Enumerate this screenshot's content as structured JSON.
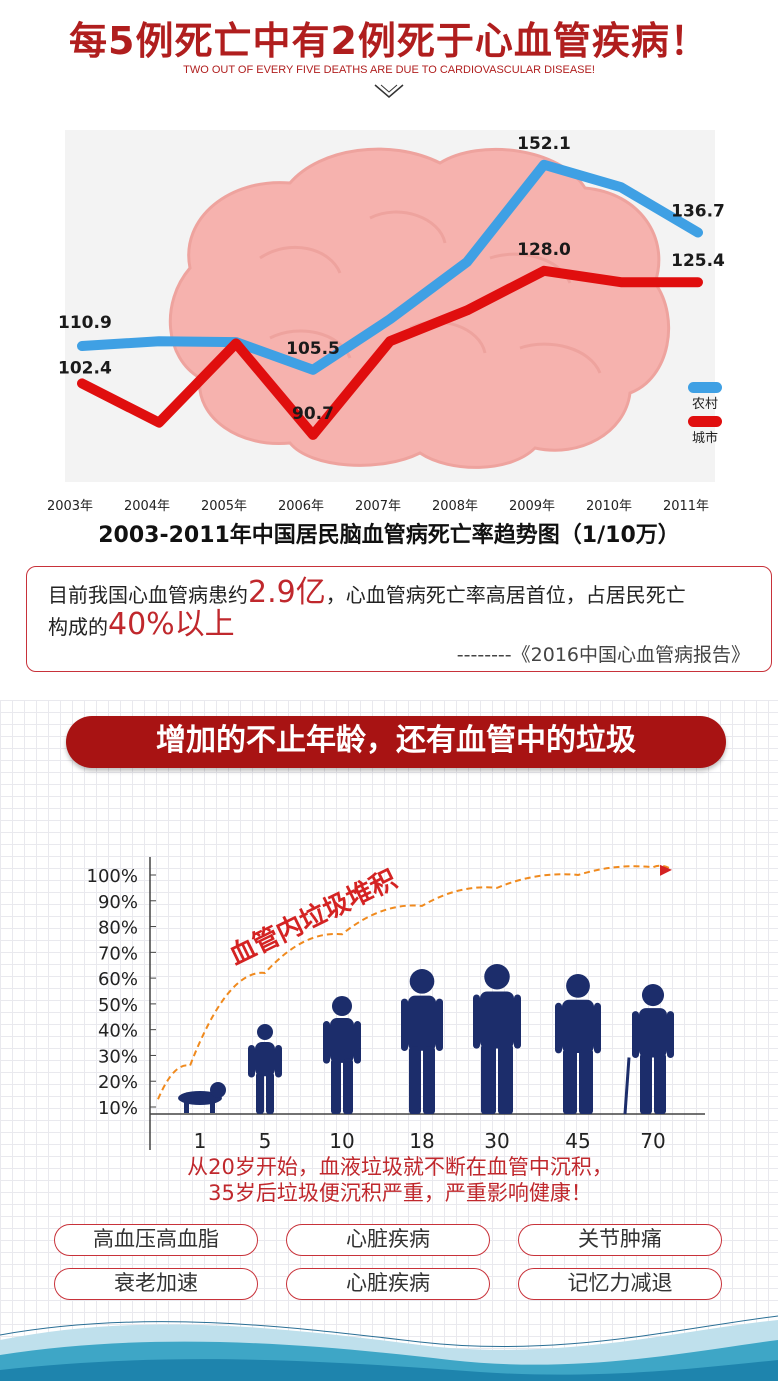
{
  "header": {
    "title": "每5例死亡中有2例死于心血管疾病！",
    "subtitle": "TWO OUT OF EVERY FIVE DEATHS ARE DUE TO CARDIOVASCULAR DISEASE!"
  },
  "chart_data": [
    {
      "type": "line",
      "title": "2003-2011年中国居民脑血管病死亡率趋势图（1/10万）",
      "x": [
        "2003年",
        "2004年",
        "2005年",
        "2006年",
        "2007年",
        "2008年",
        "2009年",
        "2010年",
        "2011年"
      ],
      "ylim": [
        80,
        160
      ],
      "series": [
        {
          "name": "农村",
          "color": "#3fa0e4",
          "values": [
            110.9,
            112.0,
            111.8,
            105.5,
            117.0,
            130.0,
            152.1,
            147.0,
            136.7
          ],
          "labels": [
            "110.9",
            null,
            null,
            "105.5",
            null,
            null,
            "152.1",
            null,
            "136.7"
          ]
        },
        {
          "name": "城市",
          "color": "#e00e0e",
          "values": [
            102.4,
            93.5,
            111.5,
            90.7,
            112.0,
            119.0,
            128.0,
            125.4,
            125.4
          ],
          "labels": [
            "102.4",
            null,
            null,
            "90.7",
            null,
            null,
            "128.0",
            null,
            "125.4"
          ]
        }
      ],
      "legend": "right",
      "background": "brain-illustration"
    },
    {
      "type": "area",
      "title": "",
      "annotation": "血管内垃圾堆积",
      "categories": [
        "1",
        "5",
        "10",
        "18",
        "30",
        "45",
        "70"
      ],
      "yticks": [
        "100%",
        "90%",
        "80%",
        "70%",
        "60%",
        "50%",
        "40%",
        "30%",
        "20%",
        "10%"
      ],
      "ylim": [
        0,
        100
      ],
      "trend": {
        "values": [
          18,
          54,
          69,
          80,
          87,
          92,
          95
        ],
        "color": "#f08a1e",
        "style": "dashed-arrow"
      },
      "figures": [
        {
          "age": "1",
          "type": "baby-icon"
        },
        {
          "age": "5",
          "type": "child-icon"
        },
        {
          "age": "10",
          "type": "teen-icon"
        },
        {
          "age": "18",
          "type": "young-man-icon"
        },
        {
          "age": "30",
          "type": "man-icon"
        },
        {
          "age": "45",
          "type": "middle-aged-man-icon"
        },
        {
          "age": "70",
          "type": "elderly-man-with-cane-icon"
        }
      ]
    }
  ],
  "quote": {
    "line1_pre": "目前我国心血管病患约",
    "line1_num": "2.9亿",
    "line1_post": "，心血管病死亡率高居首位，占居民死亡",
    "line2_pre": "构成的",
    "line2_num": "40%以上",
    "source": "--------《2016中国心血管病报告》"
  },
  "banner": {
    "text": "增加的不止年龄，还有血管中的垃圾"
  },
  "note": {
    "line1": "从20岁开始，血液垃圾就不断在血管中沉积，",
    "line2": "35岁后垃圾便沉积严重，严重影响健康！"
  },
  "tags": [
    "高血压高血脂",
    "心脏疾病",
    "关节肿痛",
    "衰老加速",
    "心脏疾病",
    "记忆力减退"
  ],
  "colors": {
    "accent": "#b01e1e",
    "rural": "#3fa0e4",
    "urban": "#e00e0e",
    "figure": "#1c2d6b",
    "trend": "#f08a1e"
  }
}
